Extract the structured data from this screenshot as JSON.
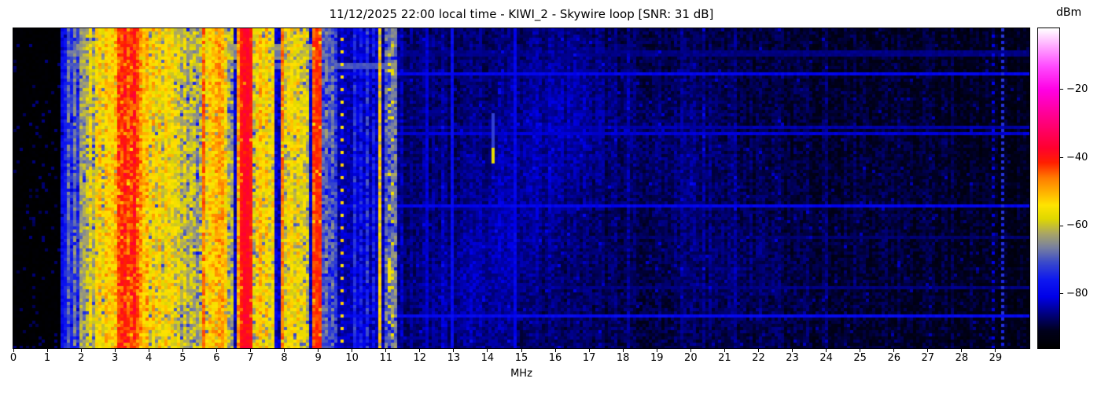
{
  "title": "11/12/2025 22:00 local time - KIWI_2 - Skywire loop [SNR: 31 dB]",
  "axes": {
    "x_label": "MHz",
    "x_range_mhz": [
      0,
      30
    ],
    "x_ticks": [
      0,
      1,
      2,
      3,
      4,
      5,
      6,
      7,
      8,
      9,
      10,
      11,
      12,
      13,
      14,
      15,
      16,
      17,
      18,
      19,
      20,
      21,
      22,
      23,
      24,
      25,
      26,
      27,
      28,
      29
    ]
  },
  "colorbar": {
    "label": "dBm",
    "range_dbm": [
      -96,
      -2
    ],
    "ticks": [
      {
        "v": -20,
        "label": "−20"
      },
      {
        "v": -40,
        "label": "−40"
      },
      {
        "v": -60,
        "label": "−60"
      },
      {
        "v": -80,
        "label": "−80"
      }
    ]
  },
  "chart_data": {
    "type": "heatmap",
    "description": "KiwiSDR 24h HF waterfall: x = frequency 0-30 MHz, y = time, color = signal power in dBm",
    "colormap_stops": [
      [
        -96,
        "#000000"
      ],
      [
        -91,
        "#00001c"
      ],
      [
        -86,
        "#000080"
      ],
      [
        -81,
        "#0000e8"
      ],
      [
        -76,
        "#0e18f0"
      ],
      [
        -71,
        "#3848cc"
      ],
      [
        -66.5,
        "#7880a0"
      ],
      [
        -62.5,
        "#a8a468"
      ],
      [
        -58,
        "#e0d800"
      ],
      [
        -54,
        "#ffe400"
      ],
      [
        -50,
        "#ffb000"
      ],
      [
        -46,
        "#ff7c00"
      ],
      [
        -41.5,
        "#ff2000"
      ],
      [
        -37,
        "#ff0030"
      ],
      [
        -28,
        "#ff008c"
      ],
      [
        -20,
        "#ff00e4"
      ],
      [
        -13,
        "#ff4cff"
      ],
      [
        -7,
        "#ffacff"
      ],
      [
        -2,
        "#ffffff"
      ]
    ],
    "noise_floor": {
      "black_max_mhz": 1.4,
      "black_level": -95.5,
      "low_floor": -82,
      "low_max_mhz": 9.6,
      "mid_floor": -84,
      "mid_max_mhz": 11.5,
      "high_floor": -86.5,
      "high_slope_db_per_mhz": -0.29
    },
    "signals": [
      [
        1.5,
        0.03,
        -79,
        4
      ],
      [
        1.57,
        0.03,
        -76,
        4
      ],
      [
        1.62,
        0.03,
        -68,
        5
      ],
      [
        1.71,
        0.03,
        -74,
        4
      ],
      [
        1.79,
        0.03,
        -66,
        4
      ],
      [
        1.88,
        0.03,
        -73,
        4
      ],
      [
        1.98,
        0.03,
        -66,
        4
      ],
      [
        2.06,
        0.04,
        -63,
        5
      ],
      [
        2.17,
        0.04,
        -60,
        5
      ],
      [
        2.28,
        0.05,
        -56,
        6
      ],
      [
        2.38,
        0.04,
        -62,
        5
      ],
      [
        2.47,
        0.04,
        -55,
        6
      ],
      [
        2.56,
        0.05,
        -52,
        6
      ],
      [
        2.65,
        0.04,
        -57,
        6
      ],
      [
        2.73,
        0.05,
        -51,
        6
      ],
      [
        2.81,
        0.04,
        -56,
        6
      ],
      [
        2.89,
        0.05,
        -53,
        6
      ],
      [
        2.97,
        0.04,
        -57,
        5
      ],
      [
        3.05,
        0.05,
        -50,
        6
      ],
      [
        3.11,
        0.05,
        -46,
        6
      ],
      [
        3.18,
        0.06,
        -43,
        6
      ],
      [
        3.25,
        0.06,
        -45,
        7
      ],
      [
        3.31,
        0.06,
        -41,
        6
      ],
      [
        3.38,
        0.05,
        -44,
        6
      ],
      [
        3.45,
        0.06,
        -47,
        7
      ],
      [
        3.52,
        0.05,
        -42,
        6
      ],
      [
        3.59,
        0.06,
        -40,
        5
      ],
      [
        3.65,
        0.05,
        -45,
        6
      ],
      [
        3.73,
        0.06,
        -48,
        7
      ],
      [
        3.8,
        0.05,
        -52,
        6
      ],
      [
        3.88,
        0.05,
        -55,
        7
      ],
      [
        3.96,
        0.05,
        -50,
        7
      ],
      [
        4.04,
        0.05,
        -56,
        7
      ],
      [
        4.13,
        0.05,
        -52,
        7
      ],
      [
        4.22,
        0.05,
        -57,
        7
      ],
      [
        4.31,
        0.04,
        -53,
        7
      ],
      [
        4.39,
        0.05,
        -58,
        7
      ],
      [
        4.48,
        0.04,
        -54,
        7
      ],
      [
        4.57,
        0.05,
        -59,
        7
      ],
      [
        4.66,
        0.04,
        -55,
        7
      ],
      [
        4.76,
        0.05,
        -58,
        7
      ],
      [
        4.86,
        0.04,
        -56,
        7
      ],
      [
        4.96,
        0.04,
        -62,
        7
      ],
      [
        5.07,
        0.04,
        -58,
        7
      ],
      [
        5.19,
        0.04,
        -63,
        7
      ],
      [
        5.3,
        0.04,
        -60,
        7
      ],
      [
        5.41,
        0.04,
        -64,
        7
      ],
      [
        5.51,
        0.04,
        -61,
        7
      ],
      [
        5.62,
        0.05,
        -45,
        4
      ],
      [
        5.75,
        0.04,
        -56,
        7
      ],
      [
        5.83,
        0.05,
        -52,
        7
      ],
      [
        5.91,
        0.05,
        -55,
        6
      ],
      [
        5.99,
        0.06,
        -50,
        6
      ],
      [
        6.07,
        0.05,
        -53,
        6
      ],
      [
        6.14,
        0.05,
        -49,
        6
      ],
      [
        6.21,
        0.05,
        -54,
        7
      ],
      [
        6.29,
        0.04,
        -58,
        7
      ],
      [
        6.41,
        0.04,
        -62,
        7
      ],
      [
        6.65,
        0.06,
        -48,
        5
      ],
      [
        6.73,
        0.07,
        -44,
        4
      ],
      [
        6.81,
        0.08,
        -40,
        3
      ],
      [
        6.89,
        0.08,
        -38,
        3
      ],
      [
        6.97,
        0.07,
        -40,
        3
      ],
      [
        7.03,
        0.05,
        -44,
        4
      ],
      [
        7.13,
        0.04,
        -60,
        7
      ],
      [
        7.23,
        0.05,
        -54,
        7
      ],
      [
        7.31,
        0.05,
        -51,
        7
      ],
      [
        7.39,
        0.05,
        -55,
        7
      ],
      [
        7.48,
        0.05,
        -52,
        7
      ],
      [
        7.59,
        0.04,
        -57,
        7
      ],
      [
        7.67,
        0.04,
        -54,
        7
      ],
      [
        7.95,
        0.05,
        -46,
        4
      ],
      [
        8.06,
        0.04,
        -58,
        7
      ],
      [
        8.16,
        0.05,
        -55,
        7
      ],
      [
        8.28,
        0.05,
        -57,
        7
      ],
      [
        8.38,
        0.04,
        -54,
        7
      ],
      [
        8.48,
        0.05,
        -58,
        7
      ],
      [
        8.58,
        0.04,
        -56,
        7
      ],
      [
        8.69,
        0.04,
        -60,
        7
      ],
      [
        8.92,
        0.05,
        -44,
        4
      ],
      [
        8.99,
        0.05,
        -42,
        3
      ],
      [
        9.13,
        0.04,
        -70,
        5
      ],
      [
        9.23,
        0.04,
        -67,
        5
      ],
      [
        9.34,
        0.04,
        -71,
        5
      ],
      [
        9.45,
        0.04,
        -68,
        5
      ],
      [
        9.54,
        0.04,
        -72,
        5
      ],
      [
        10.08,
        0.03,
        -74,
        5
      ],
      [
        10.26,
        0.03,
        -76,
        5
      ],
      [
        10.46,
        0.03,
        -73,
        5
      ],
      [
        10.63,
        0.03,
        -76,
        5
      ],
      [
        10.82,
        0.03,
        -52,
        3
      ],
      [
        11.04,
        0.05,
        -68,
        6
      ],
      [
        11.22,
        0.06,
        -66,
        5
      ]
    ],
    "features": [
      {
        "type": "dots",
        "f": 9.74,
        "period": 4,
        "phase": 1,
        "level": -53
      },
      {
        "type": "dashes",
        "f": 9.3,
        "period": 6,
        "on": 2,
        "level": -73
      },
      {
        "type": "dots",
        "f": 29.21,
        "period": 2,
        "phase": 0,
        "level": -74
      },
      {
        "type": "dots",
        "f": 28.95,
        "period": 3,
        "phase": 1,
        "level": -81
      },
      {
        "type": "vline",
        "f": 12.22,
        "level": -82
      },
      {
        "type": "vline",
        "f": 12.95,
        "level": -79
      },
      {
        "type": "vline",
        "f": 14.77,
        "level": -80
      },
      {
        "type": "segment",
        "f": 14.16,
        "r0": 27,
        "r1": 42,
        "level": -72
      },
      {
        "type": "segment",
        "f": 14.16,
        "r0": 38,
        "r1": 42,
        "level": -57
      },
      {
        "type": "segment",
        "f": 11.14,
        "r0": 74,
        "r1": 80,
        "level": -55
      },
      {
        "type": "flecks",
        "f0": 11.06,
        "f1": 11.22,
        "prob": 0.18,
        "level": -57
      },
      {
        "type": "diag",
        "f0": 8.13,
        "f1": 8.55,
        "mod": 9,
        "on": 2,
        "level": -66
      }
    ],
    "time_events": [
      {
        "r0": 5,
        "r1": 6,
        "f0": 1.9,
        "f1": 9.0,
        "level": -64
      },
      {
        "r0": 7,
        "r1": 8,
        "f0": 1.6,
        "f1": 9.2,
        "level": -67
      },
      {
        "r0": 7,
        "r1": 8,
        "f0": 9.2,
        "f1": 30,
        "level": -86
      },
      {
        "r0": 9,
        "r1": 9,
        "f0": 2.0,
        "f1": 9.0,
        "level": -65
      },
      {
        "r0": 11,
        "r1": 12,
        "f0": 1.6,
        "f1": 11.25,
        "level": -70
      },
      {
        "r0": 14,
        "r1": 14,
        "f0": 1.5,
        "f1": 30,
        "level": -80
      },
      {
        "r0": 31,
        "r1": 31,
        "f0": 8,
        "f1": 30,
        "level": -84
      },
      {
        "r0": 33,
        "r1": 33,
        "f0": 10,
        "f1": 30,
        "level": -82
      },
      {
        "r0": 56,
        "r1": 56,
        "f0": 8,
        "f1": 30,
        "level": -80
      },
      {
        "r0": 66,
        "r1": 66,
        "f0": 12,
        "f1": 30,
        "level": -87
      },
      {
        "r0": 82,
        "r1": 82,
        "f0": 9,
        "f1": 30,
        "level": -86
      },
      {
        "r0": 91,
        "r1": 91,
        "f0": 1.5,
        "f1": 30,
        "level": -79
      }
    ],
    "clouds": [
      {
        "f": 16.2,
        "r": 28,
        "sf": 1.1,
        "sr": 18,
        "a": 3.5
      },
      {
        "f": 14.6,
        "r": 62,
        "sf": 0.9,
        "sr": 20,
        "a": 3
      },
      {
        "f": 19.8,
        "r": 40,
        "sf": 1.5,
        "sr": 22,
        "a": 2.5
      },
      {
        "f": 21.5,
        "r": 80,
        "sf": 1.3,
        "sr": 18,
        "a": 2
      },
      {
        "f": 26.0,
        "r": 55,
        "sf": 1.8,
        "sr": 28,
        "a": 1.5
      },
      {
        "f": 13.3,
        "r": 85,
        "sf": 0.8,
        "sr": 15,
        "a": 2.5
      }
    ]
  }
}
